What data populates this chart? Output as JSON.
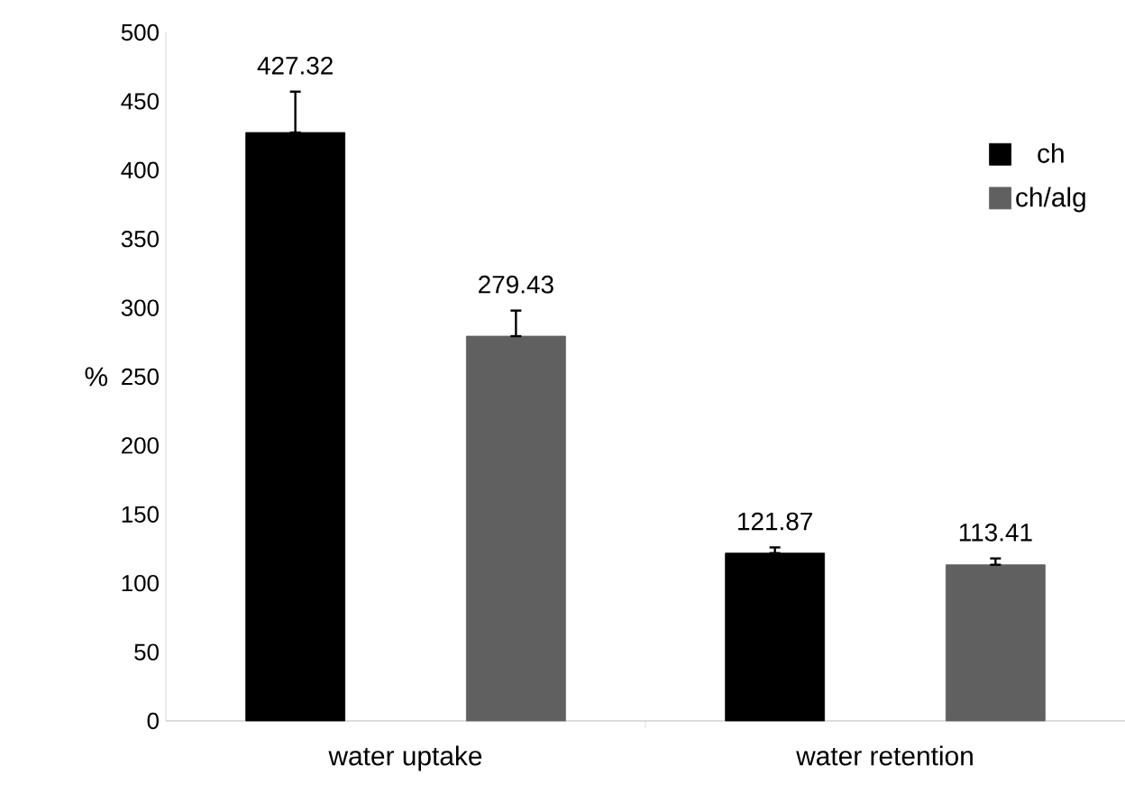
{
  "chart_data": {
    "type": "bar",
    "ylabel": "%",
    "categories": [
      "water uptake",
      "water retention"
    ],
    "series": [
      {
        "name": "ch",
        "color": "#000000",
        "values": [
          427.32,
          121.87
        ],
        "errors": [
          [
            427.32,
            457
          ],
          [
            121.87,
            126
          ]
        ]
      },
      {
        "name": "ch/alg",
        "color": "#606060",
        "values": [
          279.43,
          113.41
        ],
        "errors": [
          [
            279.43,
            298
          ],
          [
            113.41,
            118
          ]
        ]
      }
    ],
    "ylim": [
      0,
      500
    ],
    "yticks": [
      0,
      50,
      100,
      150,
      200,
      250,
      300,
      350,
      400,
      450,
      500
    ],
    "data_labels": true,
    "legend": "right",
    "grid": false
  }
}
